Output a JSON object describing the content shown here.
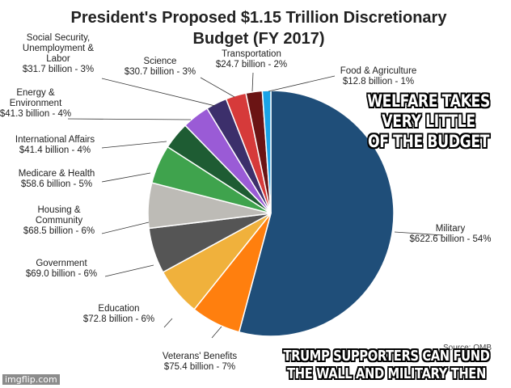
{
  "chart_data": {
    "type": "pie",
    "title_line1": "President's Proposed $1.15 Trillion Discretionary",
    "title_line2": "Budget (FY 2017)",
    "slices": [
      {
        "name": "Military",
        "value": 622.6,
        "label_lines": [
          "Military",
          "$622.6 billion - 54%"
        ],
        "color": "#1f4e79"
      },
      {
        "name": "Veterans' Benefits",
        "value": 75.4,
        "label_lines": [
          "Veterans' Benefits",
          "$75.4 billion - 7%"
        ],
        "color": "#ff7f0e"
      },
      {
        "name": "Education",
        "value": 72.8,
        "label_lines": [
          "Education",
          "$72.8 billion - 6%"
        ],
        "color": "#f0b13c"
      },
      {
        "name": "Government",
        "value": 69.0,
        "label_lines": [
          "Government",
          "$69.0 billion - 6%"
        ],
        "color": "#555555"
      },
      {
        "name": "Housing & Community",
        "value": 68.5,
        "label_lines": [
          "Housing &",
          "Community",
          "$68.5 billion - 6%"
        ],
        "color": "#bdbbb6"
      },
      {
        "name": "Medicare & Health",
        "value": 58.6,
        "label_lines": [
          "Medicare & Health",
          "$58.6 billion - 5%"
        ],
        "color": "#3fa34d"
      },
      {
        "name": "International Affairs",
        "value": 41.4,
        "label_lines": [
          "International Affairs",
          "$41.4 billion - 4%"
        ],
        "color": "#1e5c33"
      },
      {
        "name": "Energy & Environment",
        "value": 41.3,
        "label_lines": [
          "Energy &",
          "Environment",
          "$41.3 billion - 4%"
        ],
        "color": "#9a5bd6"
      },
      {
        "name": "Social Security, Unemployment & Labor",
        "value": 31.7,
        "label_lines": [
          "Social Security,",
          "Unemployment &",
          "Labor",
          "$31.7 billion - 3%"
        ],
        "color": "#3c2f6b"
      },
      {
        "name": "Science",
        "value": 30.7,
        "label_lines": [
          "Science",
          "$30.7 billion - 3%"
        ],
        "color": "#d63a3a"
      },
      {
        "name": "Transportation",
        "value": 24.7,
        "label_lines": [
          "Transportation",
          "$24.7 billion - 2%"
        ],
        "color": "#6b1414"
      },
      {
        "name": "Food & Agriculture",
        "value": 12.8,
        "label_lines": [
          "Food & Agriculture",
          "$12.8 billion - 1%"
        ],
        "color": "#1aa3e8"
      }
    ]
  },
  "overlay": {
    "top_caption": [
      "WELFARE TAKES",
      "VERY LITTLE",
      "OF THE BUDGET"
    ],
    "bottom_caption": [
      "TRUMP SUPPORTERS CAN FUND",
      "THE WALL AND MILITARY THEN"
    ],
    "source": "Source: OMB",
    "watermark": "imgflip.com"
  }
}
